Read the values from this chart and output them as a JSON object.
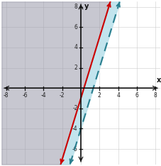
{
  "xlim": [
    -8.5,
    8.5
  ],
  "ylim": [
    -7.5,
    8.5
  ],
  "xticks": [
    -8,
    -6,
    -4,
    -2,
    2,
    4,
    6,
    8
  ],
  "yticks": [
    -6,
    -4,
    -2,
    2,
    4,
    6,
    8
  ],
  "line1_slope": 3,
  "line1_intercept": -1,
  "line1_color": "#cc0000",
  "line2_slope": 3,
  "line2_intercept": -4,
  "line2_color": "#2a7f8f",
  "grey_color": "#9999aa",
  "grey_alpha": 0.55,
  "blue_color": "#b8e0ea",
  "blue_alpha": 0.85,
  "grid_color": "#cccccc",
  "grid_lw": 0.4,
  "axis_color": "#111111",
  "axis_lw": 0.9,
  "tick_fontsize": 5.5,
  "figsize": [
    2.28,
    2.34
  ],
  "dpi": 100
}
